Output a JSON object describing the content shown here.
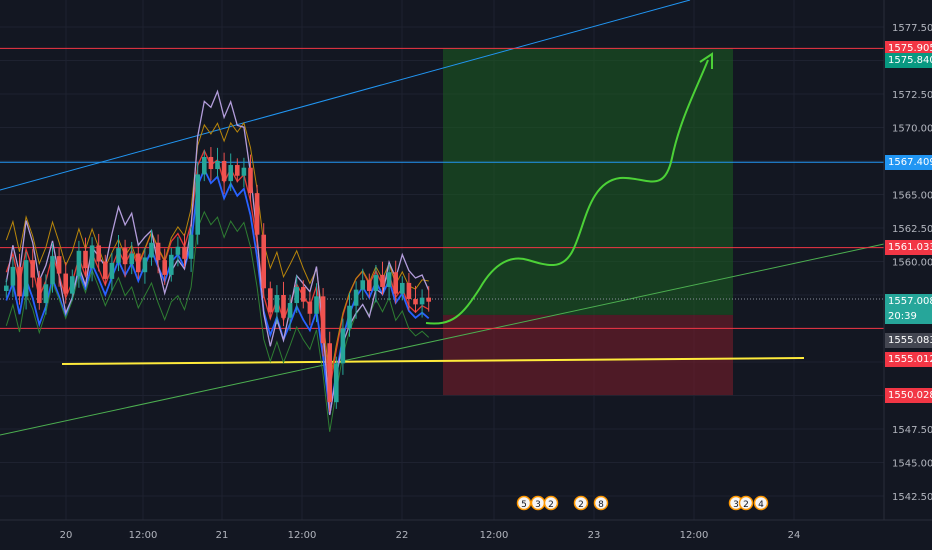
{
  "chart_data": {
    "type": "candlestick",
    "title": "",
    "x_tick_labels": [
      "20",
      "12:00",
      "21",
      "12:00",
      "22",
      "12:00",
      "23",
      "12:00",
      "24"
    ],
    "y_tick_labels": [
      "1577.500",
      "1572.500",
      "1570.000",
      "1565.000",
      "1562.500",
      "1560.000",
      "1547.500",
      "1545.000",
      "1542.500"
    ],
    "ylim": [
      1540.0,
      1578.4
    ],
    "grid": true,
    "price_lines": [
      {
        "name": "resistance-top",
        "value": 1575.905,
        "color": "#f23645"
      },
      {
        "name": "resistance-blue",
        "value": 1567.409,
        "color": "#2196f3"
      },
      {
        "name": "resistance-mid",
        "value": 1561.033,
        "color": "#f23645"
      },
      {
        "name": "entry-line",
        "value": 1555.012,
        "color": "#f23645"
      },
      {
        "name": "support-yellow",
        "value": 1553.8,
        "color": "#ffeb3b"
      }
    ],
    "price_tags": [
      {
        "label": "1575.905",
        "value": 1575.905,
        "bg": "#f23645"
      },
      {
        "label": "1575.840",
        "value": 1575.0,
        "bg": "#089981"
      },
      {
        "label": "1567.409",
        "value": 1567.409,
        "bg": "#2196f3"
      },
      {
        "label": "1561.033",
        "value": 1561.033,
        "bg": "#f23645"
      },
      {
        "label": "1557.008",
        "value": 1557.008,
        "bg": "#26a69a"
      },
      {
        "label": "20:39",
        "value": 1555.9,
        "bg": "#26a69a"
      },
      {
        "label": "1555.083",
        "value": 1554.1,
        "bg": "#434651"
      },
      {
        "label": "1555.012",
        "value": 1552.7,
        "bg": "#f23645"
      },
      {
        "label": "1550.028",
        "value": 1550.028,
        "bg": "#f23645"
      }
    ],
    "position": {
      "entry": 1555.012,
      "target": 1575.905,
      "stop": 1550.028
    },
    "price_series": [
      1558.2,
      1559.6,
      1557.4,
      1560.1,
      1558.8,
      1556.9,
      1558.3,
      1560.4,
      1559.1,
      1557.6,
      1558.9,
      1560.8,
      1559.5,
      1561.2,
      1560.0,
      1558.7,
      1559.9,
      1561.0,
      1559.8,
      1560.6,
      1559.2,
      1560.3,
      1561.4,
      1560.1,
      1559.0,
      1560.5,
      1561.1,
      1560.2,
      1562.0,
      1566.5,
      1567.8,
      1566.9,
      1567.5,
      1566.0,
      1567.2,
      1566.4,
      1567.0,
      1565.1,
      1562.0,
      1558.0,
      1556.2,
      1557.5,
      1555.8,
      1556.9,
      1558.1,
      1557.0,
      1556.1,
      1557.4,
      1553.9,
      1549.5,
      1552.4,
      1555.0,
      1556.7,
      1557.9,
      1558.6,
      1557.8,
      1559.0,
      1558.1,
      1559.2,
      1557.6,
      1558.4,
      1557.2,
      1556.8,
      1557.3,
      1557.0
    ]
  },
  "annotations": {
    "events": [
      "5",
      "3",
      "2",
      "2",
      "8",
      "3",
      "2",
      "4"
    ]
  }
}
